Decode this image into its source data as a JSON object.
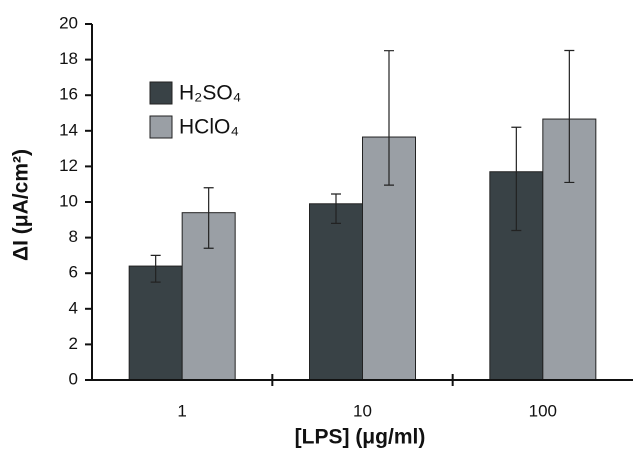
{
  "chart_data": {
    "type": "bar",
    "x_label": "[LPS] (μg/ml)",
    "y_label": "ΔI (μA/cm²)",
    "categories": [
      "1",
      "10",
      "100"
    ],
    "series": [
      {
        "name": "H₂SO₄",
        "color": "#394246",
        "values": [
          6.4,
          9.9,
          11.7
        ],
        "error_plus": [
          0.6,
          0.55,
          2.5
        ],
        "error_minus": [
          0.9,
          1.1,
          3.3
        ]
      },
      {
        "name": "HClO₄",
        "color": "#9a9fa5",
        "values": [
          9.4,
          13.65,
          14.66
        ],
        "error_plus": [
          1.4,
          4.85,
          3.85
        ],
        "error_minus": [
          2.0,
          2.7,
          3.56
        ]
      }
    ],
    "ylim": [
      0,
      20
    ],
    "yticks": [
      0,
      2,
      4,
      6,
      8,
      10,
      12,
      14,
      16,
      18,
      20
    ],
    "grid": false,
    "legend_position": "upper left"
  }
}
